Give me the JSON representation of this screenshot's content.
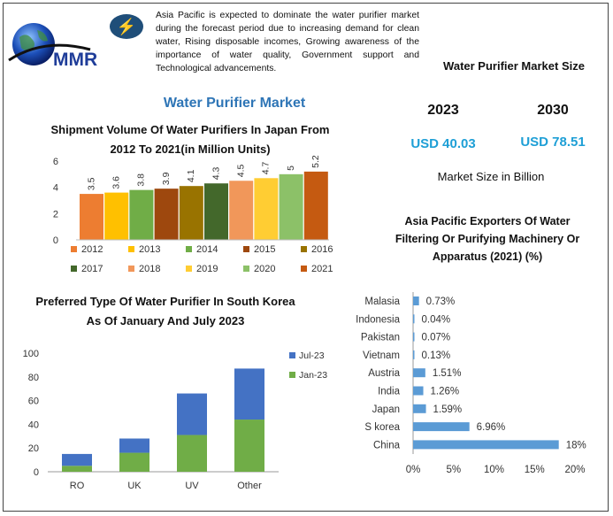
{
  "brand": {
    "logo_text": "MMR"
  },
  "headline": "Asia Pacific is expected to dominate the water purifier market during the forecast period due to increasing demand for clean water, Rising disposable incomes, Growing awareness of the importance of water quality, Government support and Technological advancements.",
  "market_title": "Water Purifier Market",
  "market_size": {
    "title": "Water Purifier Market Size",
    "year_2023": "2023",
    "year_2030": "2030",
    "value_2023": "USD 40.03",
    "value_2030": "USD 78.51",
    "unit_note": "Market Size in Billion"
  },
  "chart_data": [
    {
      "type": "bar",
      "title": "Shipment Volume Of Water Purifiers In Japan From 2012 To 2021(in Million Units)",
      "categories": [
        "2012",
        "2013",
        "2014",
        "2015",
        "2016",
        "2017",
        "2018",
        "2019",
        "2020",
        "2021"
      ],
      "values": [
        3.5,
        3.6,
        3.8,
        3.9,
        4.1,
        4.3,
        4.5,
        4.7,
        5,
        5.2
      ],
      "data_labels": [
        "3.5",
        "3.6",
        "3.8",
        "3.9",
        "4.1",
        "4.3",
        "4.5",
        "4.7",
        "5",
        "5.2"
      ],
      "colors": [
        "#ed7d31",
        "#ffc000",
        "#70ad47",
        "#9e480e",
        "#997300",
        "#43682b",
        "#f1975a",
        "#ffcd33",
        "#8cc168",
        "#c55a11"
      ],
      "ylim": [
        0,
        6
      ],
      "yticks": [
        "0",
        "2",
        "4",
        "6"
      ],
      "legend_position": "bottom",
      "grid": false
    },
    {
      "type": "bar",
      "stacked": true,
      "title": "Preferred Type Of Water Purifier In South Korea As Of January And July 2023",
      "categories": [
        "RO",
        "UK",
        "UV",
        "Other"
      ],
      "series": [
        {
          "name": "Jan-23",
          "values": [
            5,
            16,
            31,
            44
          ],
          "color": "#70ad47"
        },
        {
          "name": "Jul-23",
          "values": [
            10,
            12,
            35,
            43
          ],
          "color": "#4472c4"
        }
      ],
      "legend_order": [
        "Jul-23",
        "Jan-23"
      ],
      "ylim": [
        0,
        100
      ],
      "yticks": [
        "0",
        "20",
        "40",
        "60",
        "80",
        "100"
      ],
      "legend_position": "right",
      "grid": false
    },
    {
      "type": "bar",
      "orientation": "horizontal",
      "title": "Asia Pacific Exporters Of Water Filtering Or Purifying Machinery Or Apparatus (2021) (%)",
      "categories": [
        "Malasia",
        "Indonesia",
        "Pakistan",
        "Vietnam",
        "Austria",
        "India",
        "Japan",
        "S korea",
        "China"
      ],
      "values": [
        0.73,
        0.04,
        0.07,
        0.13,
        1.51,
        1.26,
        1.59,
        6.96,
        18
      ],
      "data_labels": [
        "0.73%",
        "0.04%",
        "0.07%",
        "0.13%",
        "1.51%",
        "1.26%",
        "1.59%",
        "6.96%",
        "18%"
      ],
      "color": "#5b9bd5",
      "xlim": [
        0,
        20
      ],
      "xticks": [
        "0%",
        "5%",
        "10%",
        "15%",
        "20%"
      ],
      "grid": false
    }
  ]
}
